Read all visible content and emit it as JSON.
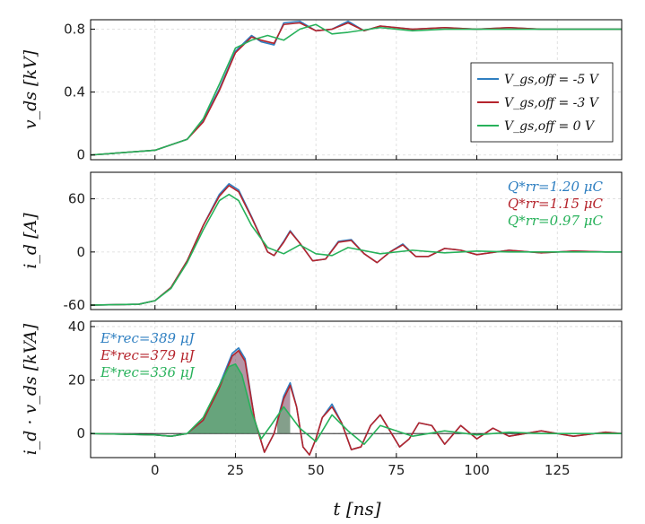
{
  "chart_data": {
    "type": "line",
    "x_axis": {
      "label": "t [ns]",
      "range": [
        -20,
        145
      ],
      "ticks": [
        0,
        25,
        50,
        75,
        100,
        125
      ]
    },
    "colors": {
      "blue": "#2f7fc1",
      "red": "#b5242c",
      "green": "#27b15a"
    },
    "legend": {
      "placement": "bottom-right of top panel",
      "entries": [
        {
          "label": "V_gs,off = -5 V",
          "color": "#2f7fc1"
        },
        {
          "label": "V_gs,off = -3 V",
          "color": "#b5242c"
        },
        {
          "label": "V_gs,off = 0 V",
          "color": "#27b15a"
        }
      ]
    },
    "grid": true,
    "panels": [
      {
        "ylabel": "v_ds [kV]",
        "ylim": [
          -0.03,
          0.86
        ],
        "yticks": [
          0,
          0.4,
          0.8
        ],
        "ytick_labels": [
          "0",
          "0.4",
          "0.8"
        ],
        "series": [
          {
            "name": "V_gs,off = -5 V",
            "color": "#2f7fc1",
            "x": [
              -20,
              0,
              10,
              15,
              20,
              25,
              30,
              33,
              37,
              40,
              45,
              50,
              55,
              60,
              65,
              70,
              80,
              90,
              100,
              110,
              120,
              130,
              140,
              145
            ],
            "y": [
              0,
              0.03,
              0.1,
              0.22,
              0.42,
              0.66,
              0.76,
              0.72,
              0.7,
              0.84,
              0.85,
              0.79,
              0.8,
              0.85,
              0.79,
              0.82,
              0.8,
              0.81,
              0.8,
              0.81,
              0.8,
              0.8,
              0.8,
              0.8
            ]
          },
          {
            "name": "V_gs,off = -3 V",
            "color": "#b5242c",
            "x": [
              -20,
              0,
              10,
              15,
              20,
              25,
              30,
              33,
              37,
              40,
              45,
              50,
              55,
              60,
              65,
              70,
              80,
              90,
              100,
              110,
              120,
              130,
              140,
              145
            ],
            "y": [
              0,
              0.03,
              0.1,
              0.21,
              0.41,
              0.65,
              0.75,
              0.73,
              0.71,
              0.83,
              0.84,
              0.79,
              0.8,
              0.84,
              0.79,
              0.82,
              0.8,
              0.81,
              0.8,
              0.81,
              0.8,
              0.8,
              0.8,
              0.8
            ]
          },
          {
            "name": "V_gs,off = 0 V",
            "color": "#27b15a",
            "x": [
              -20,
              0,
              10,
              15,
              20,
              25,
              30,
              35,
              40,
              45,
              50,
              55,
              60,
              70,
              80,
              90,
              100,
              110,
              120,
              130,
              140,
              145
            ],
            "y": [
              0,
              0.03,
              0.1,
              0.23,
              0.45,
              0.68,
              0.73,
              0.76,
              0.73,
              0.8,
              0.83,
              0.77,
              0.78,
              0.81,
              0.79,
              0.8,
              0.8,
              0.8,
              0.8,
              0.8,
              0.8,
              0.8
            ]
          }
        ]
      },
      {
        "ylabel": "i_d [A]",
        "ylim": [
          -65,
          90
        ],
        "yticks": [
          -60,
          0,
          60
        ],
        "ytick_labels": [
          "-60",
          "0",
          "60"
        ],
        "annotations": [
          {
            "text": "Q*rr=1.20 μC",
            "color": "#2f7fc1"
          },
          {
            "text": "Q*rr=1.15 μC",
            "color": "#b5242c"
          },
          {
            "text": "Q*rr=0.97 μC",
            "color": "#27b15a"
          }
        ],
        "series": [
          {
            "name": "V_gs,off = -5 V",
            "color": "#2f7fc1",
            "x": [
              -20,
              -5,
              0,
              5,
              10,
              15,
              20,
              23,
              26,
              30,
              35,
              37,
              40,
              42,
              45,
              49,
              53,
              57,
              61,
              65,
              69,
              73,
              77,
              81,
              85,
              90,
              95,
              100,
              110,
              120,
              130,
              140,
              145
            ],
            "y": [
              -60,
              -59,
              -55,
              -40,
              -10,
              30,
              65,
              77,
              70,
              40,
              0,
              -4,
              12,
              24,
              10,
              -10,
              -8,
              12,
              14,
              -2,
              -12,
              0,
              9,
              -5,
              -5,
              4,
              2,
              -3,
              2,
              -1,
              1,
              0,
              0
            ]
          },
          {
            "name": "V_gs,off = -3 V",
            "color": "#b5242c",
            "x": [
              -20,
              -5,
              0,
              5,
              10,
              15,
              20,
              23,
              26,
              30,
              35,
              37,
              40,
              42,
              45,
              49,
              53,
              57,
              61,
              65,
              69,
              73,
              77,
              81,
              85,
              90,
              95,
              100,
              110,
              120,
              130,
              140,
              145
            ],
            "y": [
              -60,
              -59,
              -55,
              -40,
              -10,
              30,
              63,
              75,
              68,
              39,
              0,
              -4,
              11,
              23,
              10,
              -10,
              -8,
              11,
              13,
              -2,
              -12,
              0,
              8,
              -5,
              -5,
              4,
              2,
              -3,
              2,
              -1,
              1,
              0,
              0
            ]
          },
          {
            "name": "V_gs,off = 0 V",
            "color": "#27b15a",
            "x": [
              -20,
              -5,
              0,
              5,
              10,
              15,
              20,
              23,
              26,
              30,
              35,
              40,
              45,
              50,
              55,
              60,
              70,
              80,
              90,
              100,
              110,
              120,
              130,
              145
            ],
            "y": [
              -60,
              -59,
              -55,
              -41,
              -12,
              25,
              58,
              65,
              58,
              30,
              5,
              -2,
              8,
              -2,
              -4,
              5,
              -2,
              2,
              -1,
              1,
              0,
              0,
              0,
              0
            ]
          }
        ]
      },
      {
        "ylabel": "i_d · v_ds [kVA]",
        "ylim": [
          -9,
          42
        ],
        "yticks": [
          0,
          20,
          40
        ],
        "ytick_labels": [
          "0",
          "20",
          "40"
        ],
        "annotations": [
          {
            "text": "E*rec=389 μJ",
            "color": "#2f7fc1"
          },
          {
            "text": "E*rec=379 μJ",
            "color": "#b5242c"
          },
          {
            "text": "E*rec=336 μJ",
            "color": "#27b15a"
          }
        ],
        "series": [
          {
            "name": "V_gs,off = -5 V",
            "color": "#2f7fc1",
            "x": [
              -20,
              0,
              5,
              10,
              15,
              20,
              24,
              26,
              28,
              31,
              34,
              37,
              40,
              42,
              44,
              46,
              48,
              50,
              52,
              55,
              58,
              61,
              64,
              67,
              70,
              73,
              76,
              79,
              82,
              86,
              90,
              95,
              100,
              105,
              110,
              120,
              130,
              140,
              145
            ],
            "y": [
              0,
              -0.5,
              -1,
              0,
              5,
              18,
              30,
              32,
              28,
              5,
              -7,
              0,
              14,
              19,
              10,
              -5,
              -8,
              -2,
              6,
              11,
              4,
              -6,
              -5,
              3,
              7,
              1,
              -5,
              -2,
              4,
              3,
              -4,
              3,
              -2,
              2,
              -1,
              1,
              -1,
              0.5,
              0
            ]
          },
          {
            "name": "V_gs,off = -3 V",
            "color": "#b5242c",
            "x": [
              -20,
              0,
              5,
              10,
              15,
              20,
              24,
              26,
              28,
              31,
              34,
              37,
              40,
              42,
              44,
              46,
              48,
              50,
              52,
              55,
              58,
              61,
              64,
              67,
              70,
              73,
              76,
              79,
              82,
              86,
              90,
              95,
              100,
              105,
              110,
              120,
              130,
              140,
              145
            ],
            "y": [
              0,
              -0.5,
              -1,
              0,
              5,
              17,
              29,
              31,
              27,
              5,
              -7,
              0,
              13,
              18,
              10,
              -5,
              -8,
              -2,
              6,
              10,
              4,
              -6,
              -5,
              3,
              7,
              1,
              -5,
              -2,
              4,
              3,
              -4,
              3,
              -2,
              2,
              -1,
              1,
              -1,
              0.5,
              0
            ]
          },
          {
            "name": "V_gs,off = 0 V",
            "color": "#27b15a",
            "x": [
              -20,
              0,
              5,
              10,
              15,
              20,
              23,
              25,
              27,
              30,
              33,
              36,
              40,
              45,
              50,
              55,
              60,
              65,
              70,
              80,
              90,
              100,
              110,
              120,
              130,
              145
            ],
            "y": [
              0,
              -0.5,
              -1,
              0,
              6,
              18,
              25,
              26,
              22,
              8,
              -2,
              3,
              10,
              2,
              -3,
              7,
              1,
              -4,
              3,
              -1,
              1,
              -0.5,
              0.5,
              0,
              0,
              0
            ]
          }
        ]
      }
    ]
  }
}
